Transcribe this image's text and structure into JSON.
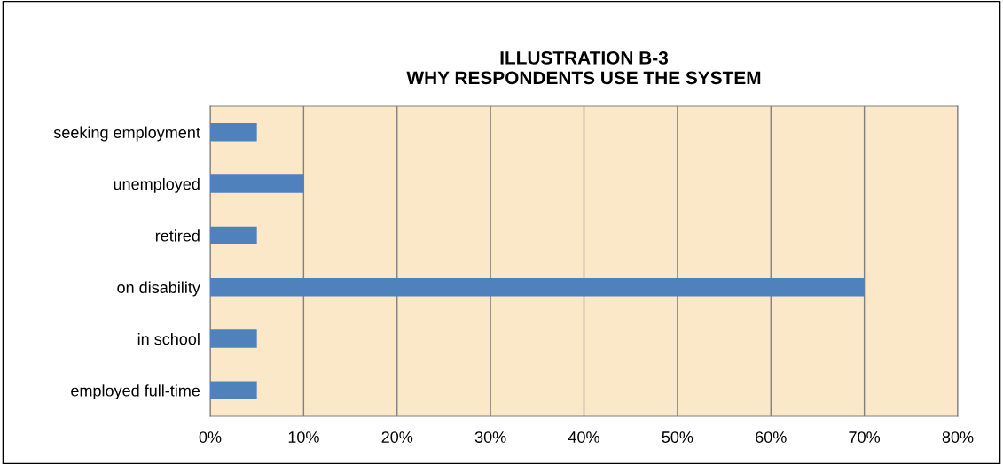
{
  "chart_data": {
    "type": "bar",
    "orientation": "horizontal",
    "title": "ILLUSTRATION B-3\nWHY RESPONDENTS USE THE SYSTEM",
    "categories": [
      "seeking employment",
      "unemployed",
      "retired",
      "on disability",
      "in school",
      "employed full-time"
    ],
    "values": [
      5,
      10,
      5,
      70,
      5,
      5
    ],
    "color": "#4f81bd",
    "xlim": [
      0,
      80
    ],
    "xticks": [
      {
        "value": 0,
        "label": "0%"
      },
      {
        "value": 10,
        "label": "10%"
      },
      {
        "value": 20,
        "label": "20%"
      },
      {
        "value": 30,
        "label": "30%"
      },
      {
        "value": 40,
        "label": "40%"
      },
      {
        "value": 50,
        "label": "50%"
      },
      {
        "value": 60,
        "label": "60%"
      },
      {
        "value": 70,
        "label": "70%"
      },
      {
        "value": 80,
        "label": "80%"
      }
    ],
    "grid": "x",
    "legend": false
  }
}
